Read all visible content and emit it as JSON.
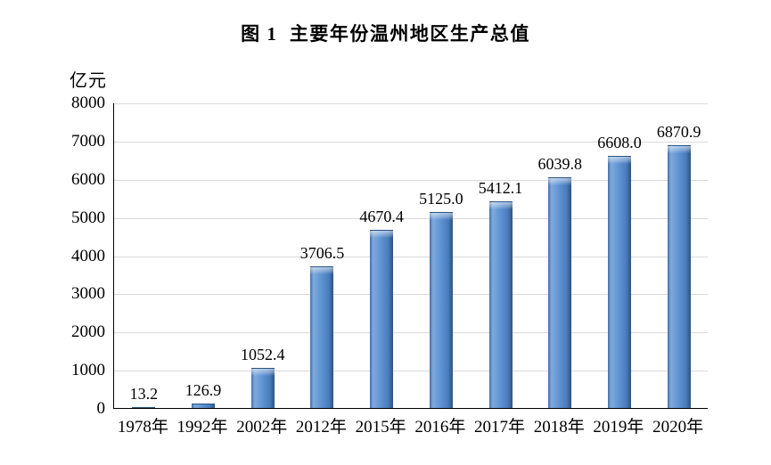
{
  "figure": {
    "title": "图 1  主要年份温州地区生产总值",
    "unit_label": "亿元"
  },
  "chart_data": {
    "type": "bar",
    "title": "图 1  主要年份温州地区生产总值",
    "categories": [
      "1978年",
      "1992年",
      "2002年",
      "2012年",
      "2015年",
      "2016年",
      "2017年",
      "2018年",
      "2019年",
      "2020年"
    ],
    "values": [
      13.2,
      126.9,
      1052.4,
      3706.5,
      4670.4,
      5125.0,
      5412.1,
      6039.8,
      6608.0,
      6870.9
    ],
    "value_labels": [
      "13.2",
      "126.9",
      "1052.4",
      "3706.5",
      "4670.4",
      "5125.0",
      "5412.1",
      "6039.8",
      "6608.0",
      "6870.9"
    ],
    "xlabel": "",
    "ylabel": "亿元",
    "ylim": [
      0,
      8000
    ],
    "yticks": [
      0,
      1000,
      2000,
      3000,
      4000,
      5000,
      6000,
      7000,
      8000
    ],
    "grid": "horizontal",
    "legend": "none",
    "colors": {
      "bar_fill": "#5588cb",
      "bar_highlight": "#7fa9dd",
      "bar_edge_dark": "#2c5380",
      "bar_cap_light": "#a9c7e9",
      "gridline": "#d9d9d9",
      "axis": "#000000",
      "text": "#000000",
      "background": "#ffffff"
    }
  }
}
